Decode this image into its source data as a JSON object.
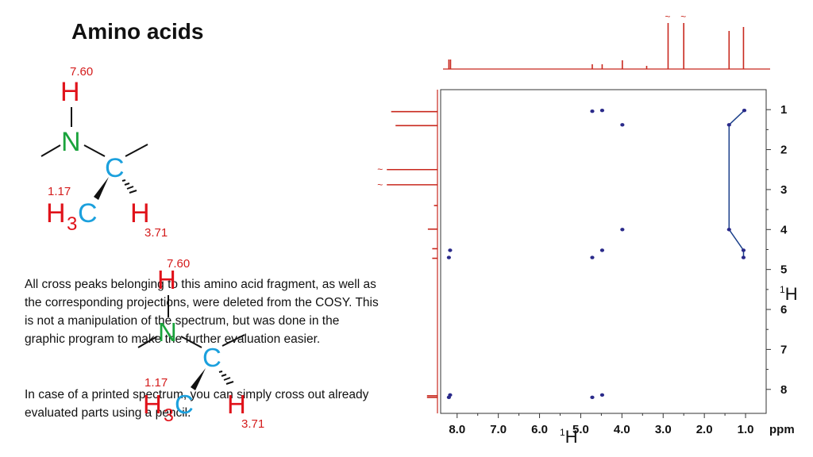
{
  "title": "Amino acids",
  "paragraphs": [
    "All cross peaks belonging to this amino acid fragment, as well as the corresponding projections, were deleted from the COSY. This is not a manipulation of the spectrum, but was done in the graphic program to make the further evaluation easier.",
    "In case of a printed spectrum, you can simply cross out already evaluated parts using a pencil."
  ],
  "molecule": {
    "atoms": {
      "H": "H",
      "N": "N",
      "C": "C",
      "H3C_main": "H",
      "H3C_sub": "3",
      "H3C_c": "C",
      "H_ch": "H"
    },
    "shifts": {
      "nh": "7.60",
      "ch3": "1.17",
      "ch": "3.71"
    }
  },
  "colors": {
    "H": "#e0121a",
    "N": "#1aa33c",
    "C": "#1ba0dd",
    "spectrum": "#c8281e",
    "peaks": "#2a2a8a",
    "connect": "#1a3f8a"
  },
  "chart_data": {
    "type": "scatter",
    "title": "",
    "xlabel": "1H",
    "ylabel": "1H",
    "x_unit": "ppm",
    "xlim": [
      8.4,
      0.5
    ],
    "ylim": [
      0.5,
      8.6
    ],
    "x_ticks": [
      "8.0",
      "7.0",
      "6.0",
      "5.0",
      "4.0",
      "3.0",
      "2.0",
      "1.0"
    ],
    "y_ticks": [
      "1",
      "2",
      "3",
      "4",
      "5",
      "6",
      "7",
      "8"
    ],
    "cross_peaks": [
      {
        "x": 4.72,
        "y": 1.04
      },
      {
        "x": 4.48,
        "y": 1.02
      },
      {
        "x": 3.99,
        "y": 1.38
      },
      {
        "x": 1.03,
        "y": 1.02
      },
      {
        "x": 1.4,
        "y": 1.38
      },
      {
        "x": 3.99,
        "y": 4.0
      },
      {
        "x": 1.4,
        "y": 4.0
      },
      {
        "x": 8.17,
        "y": 4.52
      },
      {
        "x": 8.2,
        "y": 4.7
      },
      {
        "x": 4.48,
        "y": 4.52
      },
      {
        "x": 4.72,
        "y": 4.7
      },
      {
        "x": 1.05,
        "y": 4.52
      },
      {
        "x": 1.05,
        "y": 4.7
      },
      {
        "x": 8.17,
        "y": 8.14
      },
      {
        "x": 8.2,
        "y": 8.2
      },
      {
        "x": 4.72,
        "y": 8.2
      },
      {
        "x": 4.48,
        "y": 8.14
      }
    ],
    "connection_path": [
      {
        "x": 1.03,
        "y": 1.02
      },
      {
        "x": 1.4,
        "y": 1.38
      },
      {
        "x": 1.4,
        "y": 4.0
      },
      {
        "x": 1.05,
        "y": 4.52
      },
      {
        "x": 1.05,
        "y": 4.7
      }
    ],
    "projection_peaks": [
      {
        "ppm": 8.2,
        "h": 12
      },
      {
        "ppm": 8.16,
        "h": 12
      },
      {
        "ppm": 4.72,
        "h": 6
      },
      {
        "ppm": 4.48,
        "h": 6
      },
      {
        "ppm": 3.99,
        "h": 11
      },
      {
        "ppm": 3.4,
        "h": 4
      },
      {
        "ppm": 2.88,
        "h": 58
      },
      {
        "ppm": 2.5,
        "h": 58
      },
      {
        "ppm": 1.4,
        "h": 48
      },
      {
        "ppm": 1.05,
        "h": 53
      }
    ],
    "clipped_marker": "~"
  }
}
